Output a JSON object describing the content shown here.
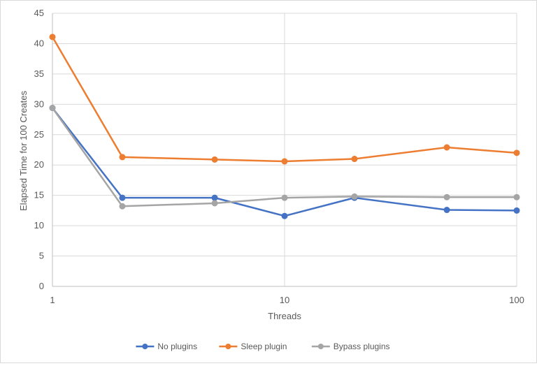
{
  "chart_data": {
    "type": "line",
    "x_scale": "log",
    "x": [
      1,
      2,
      5,
      10,
      20,
      50,
      100
    ],
    "xlabel": "Threads",
    "ylabel": "Elapsed Time for 100 Creates",
    "xlim": [
      1,
      100
    ],
    "ylim": [
      0,
      45
    ],
    "x_ticks": [
      "1",
      "10",
      "100"
    ],
    "y_ticks": [
      "0",
      "5",
      "10",
      "15",
      "20",
      "25",
      "30",
      "35",
      "40",
      "45"
    ],
    "grid": "major",
    "legend_position": "bottom",
    "series": [
      {
        "name": "No plugins",
        "color": "#4472c4",
        "values": [
          29.4,
          14.6,
          14.6,
          11.6,
          14.6,
          12.6,
          12.5
        ]
      },
      {
        "name": "Sleep plugin",
        "color": "#ed7d31",
        "values": [
          41.1,
          21.3,
          20.9,
          20.6,
          21.0,
          22.9,
          22.0
        ]
      },
      {
        "name": "Bypass plugins",
        "color": "#a5a5a5",
        "values": [
          29.4,
          13.2,
          13.7,
          14.6,
          14.8,
          14.7,
          14.7
        ]
      }
    ]
  }
}
